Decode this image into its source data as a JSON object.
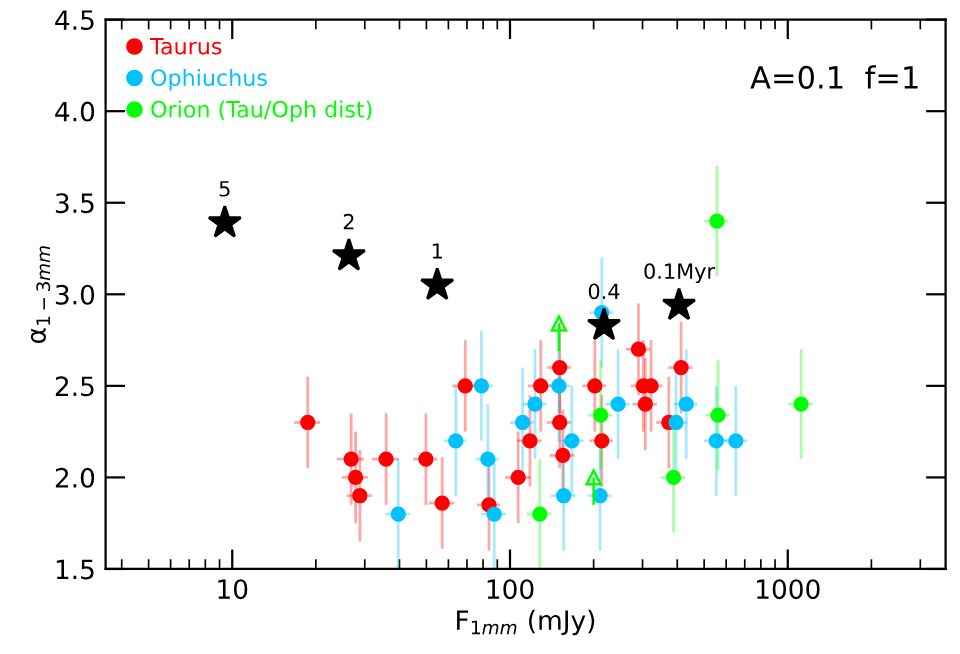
{
  "chart_data": {
    "type": "scatter",
    "xlabel": "F$_{1mm}$ (mJy)",
    "ylabel": "α$_{1−3mm}$",
    "log": "x",
    "xlim": [
      3.5,
      3700
    ],
    "xticks": [
      10,
      100,
      1000
    ],
    "ylim": [
      1.5,
      4.5
    ],
    "yticks": [
      {
        "value": 1.5,
        "label": "1.5"
      },
      {
        "value": 2.0,
        "label": "2.0"
      },
      {
        "value": 2.5,
        "label": "2.5"
      },
      {
        "value": 3.0,
        "label": "3.0"
      },
      {
        "value": 3.5,
        "label": "3.5"
      },
      {
        "value": 4.0,
        "label": "4.0"
      },
      {
        "value": 4.5,
        "label": "4.5"
      }
    ],
    "grid": false,
    "legend": "top left",
    "marker": "circle",
    "series": [
      {
        "name": "Taurus",
        "color": "#ff0000",
        "x": [
          18.7,
          26.8,
          27.8,
          28.8,
          35.8,
          49.8,
          57,
          69,
          84,
          107,
          118,
          129,
          151,
          151,
          155,
          202,
          214,
          290,
          302,
          307,
          322,
          373,
          413
        ],
        "values": [
          2.3,
          2.1,
          2.0,
          1.9,
          2.1,
          2.1,
          1.86,
          2.5,
          1.85,
          2.0,
          2.2,
          2.5,
          2.6,
          2.3,
          2.12,
          2.5,
          2.2,
          2.7,
          2.5,
          2.4,
          2.5,
          2.3,
          2.6
        ],
        "errors": [
          0.25,
          0.25,
          0.25,
          0.25,
          0.25,
          0.25,
          0.25,
          0.25,
          0.25,
          0.25,
          0.25,
          0.25,
          0.25,
          0.25,
          0.25,
          0.25,
          0.25,
          0.25,
          0.25,
          0.25,
          0.25,
          0.25,
          0.25
        ],
        "xerrors": [
          2,
          3,
          3,
          3,
          4,
          5,
          6,
          7,
          8,
          11,
          12,
          13,
          15,
          15,
          16,
          20,
          21,
          29,
          30,
          31,
          32,
          37,
          41
        ]
      },
      {
        "name": "Ophiuchus",
        "color": "#00c0ff",
        "x": [
          39.6,
          63.8,
          78.9,
          83.2,
          87.7,
          111,
          123,
          150,
          156,
          167,
          211,
          214,
          245,
          396,
          431,
          553,
          650
        ],
        "values": [
          1.8,
          2.2,
          2.5,
          2.1,
          1.8,
          2.3,
          2.4,
          2.5,
          1.9,
          2.2,
          1.9,
          2.9,
          2.4,
          2.3,
          2.4,
          2.2,
          2.2
        ],
        "errors": [
          0.3,
          0.3,
          0.3,
          0.3,
          0.3,
          0.3,
          0.3,
          0.3,
          0.3,
          0.3,
          0.3,
          0.3,
          0.3,
          0.28,
          0.3,
          0.3,
          0.3
        ],
        "xerrors": [
          4,
          6,
          8,
          8,
          9,
          11,
          12,
          15,
          16,
          17,
          21,
          21,
          25,
          40,
          43,
          55,
          65
        ]
      },
      {
        "name": "Orion (Tau/Oph dist)",
        "color": "#00ff00",
        "x": [
          128,
          212,
          388,
          556,
          561,
          1117
        ],
        "values": [
          1.8,
          2.34,
          2.0,
          3.4,
          2.34,
          2.4
        ],
        "errors": [
          0.3,
          0.3,
          0.3,
          0.3,
          0.3,
          0.3
        ],
        "xerrors": [
          13,
          21,
          39,
          56,
          56,
          112
        ]
      },
      {
        "type": "scatter",
        "marker": "triangle",
        "color": "#00ff00",
        "x": [
          150,
          200
        ],
        "values": [
          2.84,
          2.0
        ],
        "errors": [
          [
            2.69,
            2.84
          ],
          [
            1.85,
            2.0
          ]
        ]
      },
      {
        "type": "scatter",
        "marker": "star",
        "color": "#000000",
        "x": [
          9.4,
          26.3,
          54.7,
          218,
          406
        ],
        "values": [
          3.39,
          3.21,
          3.05,
          2.83,
          2.94
        ]
      }
    ],
    "annotations": [
      {
        "text": "5",
        "x": 9.4,
        "y": 3.39
      },
      {
        "text": "2",
        "x": 26.3,
        "y": 3.21
      },
      {
        "text": "1",
        "x": 54.7,
        "y": 3.05
      },
      {
        "text": "0.4",
        "x": 218,
        "y": 2.83
      },
      {
        "text": "0.1Myr",
        "x": 406,
        "y": 2.94
      },
      "A=0.1  f=1"
    ]
  }
}
